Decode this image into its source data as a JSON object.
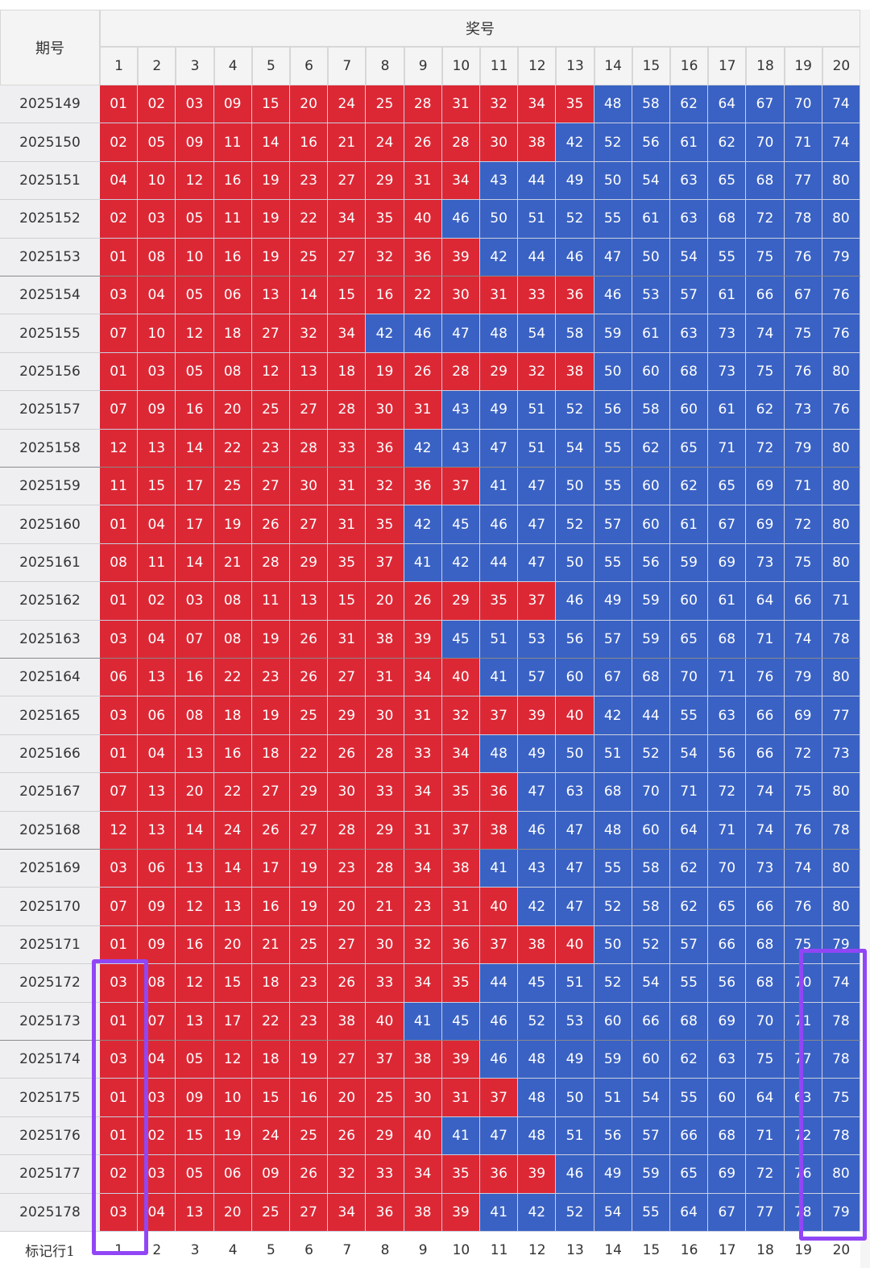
{
  "header": {
    "period_label": "期号",
    "prize_label": "奖号",
    "columns": [
      "1",
      "2",
      "3",
      "4",
      "5",
      "6",
      "7",
      "8",
      "9",
      "10",
      "11",
      "12",
      "13",
      "14",
      "15",
      "16",
      "17",
      "18",
      "19",
      "20"
    ]
  },
  "colors": {
    "red": "#dc2835",
    "blue": "#3a62c4",
    "highlight": "#9146f5"
  },
  "rows": [
    {
      "period": "2025149",
      "numbers": [
        "01",
        "02",
        "03",
        "09",
        "15",
        "20",
        "24",
        "25",
        "28",
        "31",
        "32",
        "34",
        "35",
        "48",
        "58",
        "62",
        "64",
        "67",
        "70",
        "74"
      ]
    },
    {
      "period": "2025150",
      "numbers": [
        "02",
        "05",
        "09",
        "11",
        "14",
        "16",
        "21",
        "24",
        "26",
        "28",
        "30",
        "38",
        "42",
        "52",
        "56",
        "61",
        "62",
        "70",
        "71",
        "74"
      ]
    },
    {
      "period": "2025151",
      "numbers": [
        "04",
        "10",
        "12",
        "16",
        "19",
        "23",
        "27",
        "29",
        "31",
        "34",
        "43",
        "44",
        "49",
        "50",
        "54",
        "63",
        "65",
        "68",
        "77",
        "80"
      ]
    },
    {
      "period": "2025152",
      "numbers": [
        "02",
        "03",
        "05",
        "11",
        "19",
        "22",
        "34",
        "35",
        "40",
        "46",
        "50",
        "51",
        "52",
        "55",
        "61",
        "63",
        "68",
        "72",
        "78",
        "80"
      ]
    },
    {
      "period": "2025153",
      "numbers": [
        "01",
        "08",
        "10",
        "16",
        "19",
        "25",
        "27",
        "32",
        "36",
        "39",
        "42",
        "44",
        "46",
        "47",
        "50",
        "54",
        "55",
        "75",
        "76",
        "79"
      ]
    },
    {
      "period": "2025154",
      "numbers": [
        "03",
        "04",
        "05",
        "06",
        "13",
        "14",
        "15",
        "16",
        "22",
        "30",
        "31",
        "33",
        "36",
        "46",
        "53",
        "57",
        "61",
        "66",
        "67",
        "76"
      ]
    },
    {
      "period": "2025155",
      "numbers": [
        "07",
        "10",
        "12",
        "18",
        "27",
        "32",
        "34",
        "42",
        "46",
        "47",
        "48",
        "54",
        "58",
        "59",
        "61",
        "63",
        "73",
        "74",
        "75",
        "76"
      ]
    },
    {
      "period": "2025156",
      "numbers": [
        "01",
        "03",
        "05",
        "08",
        "12",
        "13",
        "18",
        "19",
        "26",
        "28",
        "29",
        "32",
        "38",
        "50",
        "60",
        "68",
        "73",
        "75",
        "76",
        "80"
      ]
    },
    {
      "period": "2025157",
      "numbers": [
        "07",
        "09",
        "16",
        "20",
        "25",
        "27",
        "28",
        "30",
        "31",
        "43",
        "49",
        "51",
        "52",
        "56",
        "58",
        "60",
        "61",
        "62",
        "73",
        "76"
      ]
    },
    {
      "period": "2025158",
      "numbers": [
        "12",
        "13",
        "14",
        "22",
        "23",
        "28",
        "33",
        "36",
        "42",
        "43",
        "47",
        "51",
        "54",
        "55",
        "62",
        "65",
        "71",
        "72",
        "79",
        "80"
      ]
    },
    {
      "period": "2025159",
      "numbers": [
        "11",
        "15",
        "17",
        "25",
        "27",
        "30",
        "31",
        "32",
        "36",
        "37",
        "41",
        "47",
        "50",
        "55",
        "60",
        "62",
        "65",
        "69",
        "71",
        "80"
      ]
    },
    {
      "period": "2025160",
      "numbers": [
        "01",
        "04",
        "17",
        "19",
        "26",
        "27",
        "31",
        "35",
        "42",
        "45",
        "46",
        "47",
        "52",
        "57",
        "60",
        "61",
        "67",
        "69",
        "72",
        "80"
      ]
    },
    {
      "period": "2025161",
      "numbers": [
        "08",
        "11",
        "14",
        "21",
        "28",
        "29",
        "35",
        "37",
        "41",
        "42",
        "44",
        "47",
        "50",
        "55",
        "56",
        "59",
        "69",
        "73",
        "75",
        "80"
      ]
    },
    {
      "period": "2025162",
      "numbers": [
        "01",
        "02",
        "03",
        "08",
        "11",
        "13",
        "15",
        "20",
        "26",
        "29",
        "35",
        "37",
        "46",
        "49",
        "59",
        "60",
        "61",
        "64",
        "66",
        "71"
      ]
    },
    {
      "period": "2025163",
      "numbers": [
        "03",
        "04",
        "07",
        "08",
        "19",
        "26",
        "31",
        "38",
        "39",
        "45",
        "51",
        "53",
        "56",
        "57",
        "59",
        "65",
        "68",
        "71",
        "74",
        "78"
      ]
    },
    {
      "period": "2025164",
      "numbers": [
        "06",
        "13",
        "16",
        "22",
        "23",
        "26",
        "27",
        "31",
        "34",
        "40",
        "41",
        "57",
        "60",
        "67",
        "68",
        "70",
        "71",
        "76",
        "79",
        "80"
      ]
    },
    {
      "period": "2025165",
      "numbers": [
        "03",
        "06",
        "08",
        "18",
        "19",
        "25",
        "29",
        "30",
        "31",
        "32",
        "37",
        "39",
        "40",
        "42",
        "44",
        "55",
        "63",
        "66",
        "69",
        "77"
      ]
    },
    {
      "period": "2025166",
      "numbers": [
        "01",
        "04",
        "13",
        "16",
        "18",
        "22",
        "26",
        "28",
        "33",
        "34",
        "48",
        "49",
        "50",
        "51",
        "52",
        "54",
        "56",
        "66",
        "72",
        "73"
      ]
    },
    {
      "period": "2025167",
      "numbers": [
        "07",
        "13",
        "20",
        "22",
        "27",
        "29",
        "30",
        "33",
        "34",
        "35",
        "36",
        "47",
        "63",
        "68",
        "70",
        "71",
        "72",
        "74",
        "75",
        "80"
      ]
    },
    {
      "period": "2025168",
      "numbers": [
        "12",
        "13",
        "14",
        "24",
        "26",
        "27",
        "28",
        "29",
        "31",
        "37",
        "38",
        "46",
        "47",
        "48",
        "60",
        "64",
        "71",
        "74",
        "76",
        "78"
      ]
    },
    {
      "period": "2025169",
      "numbers": [
        "03",
        "06",
        "13",
        "14",
        "17",
        "19",
        "23",
        "28",
        "34",
        "38",
        "41",
        "43",
        "47",
        "55",
        "58",
        "62",
        "70",
        "73",
        "74",
        "80"
      ]
    },
    {
      "period": "2025170",
      "numbers": [
        "07",
        "09",
        "12",
        "13",
        "16",
        "19",
        "20",
        "21",
        "23",
        "31",
        "40",
        "42",
        "47",
        "52",
        "58",
        "62",
        "65",
        "66",
        "76",
        "80"
      ]
    },
    {
      "period": "2025171",
      "numbers": [
        "01",
        "09",
        "16",
        "20",
        "21",
        "25",
        "27",
        "30",
        "32",
        "36",
        "37",
        "38",
        "40",
        "50",
        "52",
        "57",
        "66",
        "68",
        "75",
        "79"
      ]
    },
    {
      "period": "2025172",
      "numbers": [
        "03",
        "08",
        "12",
        "15",
        "18",
        "23",
        "26",
        "33",
        "34",
        "35",
        "44",
        "45",
        "51",
        "52",
        "54",
        "55",
        "56",
        "68",
        "70",
        "74"
      ]
    },
    {
      "period": "2025173",
      "numbers": [
        "01",
        "07",
        "13",
        "17",
        "22",
        "23",
        "38",
        "40",
        "41",
        "45",
        "46",
        "52",
        "53",
        "60",
        "66",
        "68",
        "69",
        "70",
        "71",
        "78"
      ]
    },
    {
      "period": "2025174",
      "numbers": [
        "03",
        "04",
        "05",
        "12",
        "18",
        "19",
        "27",
        "37",
        "38",
        "39",
        "46",
        "48",
        "49",
        "59",
        "60",
        "62",
        "63",
        "75",
        "77",
        "78"
      ]
    },
    {
      "period": "2025175",
      "numbers": [
        "01",
        "03",
        "09",
        "10",
        "15",
        "16",
        "20",
        "25",
        "30",
        "31",
        "37",
        "48",
        "50",
        "51",
        "54",
        "55",
        "60",
        "64",
        "63",
        "75"
      ]
    },
    {
      "period": "2025176",
      "numbers": [
        "01",
        "02",
        "15",
        "19",
        "24",
        "25",
        "26",
        "29",
        "40",
        "41",
        "47",
        "48",
        "51",
        "56",
        "57",
        "66",
        "68",
        "71",
        "72",
        "78"
      ]
    },
    {
      "period": "2025177",
      "numbers": [
        "02",
        "03",
        "05",
        "06",
        "09",
        "26",
        "32",
        "33",
        "34",
        "35",
        "36",
        "39",
        "46",
        "49",
        "59",
        "65",
        "69",
        "72",
        "76",
        "80"
      ]
    },
    {
      "period": "2025178",
      "numbers": [
        "03",
        "04",
        "13",
        "20",
        "25",
        "27",
        "34",
        "36",
        "38",
        "39",
        "41",
        "42",
        "52",
        "54",
        "55",
        "64",
        "67",
        "77",
        "78",
        "79"
      ]
    }
  ],
  "footer": {
    "label": "标记行1",
    "columns": [
      "1",
      "2",
      "3",
      "4",
      "5",
      "6",
      "7",
      "8",
      "9",
      "10",
      "11",
      "12",
      "13",
      "14",
      "15",
      "16",
      "17",
      "18",
      "19",
      "20"
    ]
  }
}
